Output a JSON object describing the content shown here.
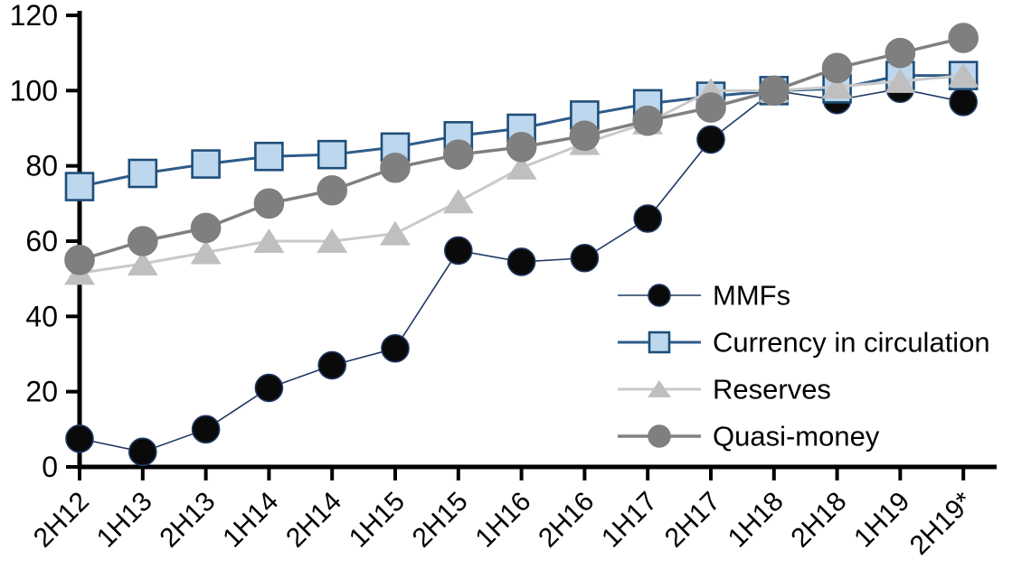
{
  "chart_data": {
    "type": "line",
    "title": "",
    "categories": [
      "2H12",
      "1H13",
      "2H13",
      "1H14",
      "2H14",
      "1H15",
      "2H15",
      "1H16",
      "2H16",
      "1H17",
      "2H17",
      "1H18",
      "2H18",
      "1H19",
      "2H19*"
    ],
    "series": [
      {
        "name": "MMFs",
        "marker": "circle",
        "marker_fill": "#0a0a0a",
        "marker_stroke": "#1f3864",
        "line_color": "#1f3864",
        "line_width": 1.6,
        "marker_size": 15,
        "values": [
          7.5,
          4,
          10,
          21,
          27,
          31.5,
          57.5,
          54.5,
          55.5,
          66,
          87,
          100,
          97.5,
          100.5,
          97
        ]
      },
      {
        "name": "Currency in circulation",
        "marker": "square",
        "marker_fill": "#bdd7ee",
        "marker_stroke": "#1f4e79",
        "line_color": "#2e5c8a",
        "line_width": 3,
        "marker_size": 15,
        "values": [
          74.5,
          78,
          80.5,
          82.5,
          83,
          85,
          88,
          90,
          93.5,
          96.5,
          98.5,
          100,
          100.5,
          104,
          104
        ]
      },
      {
        "name": "Reserves",
        "marker": "triangle",
        "marker_fill": "#bfbfbf",
        "marker_stroke": "#bfbfbf",
        "line_color": "#c9c9c9",
        "line_width": 3,
        "marker_size": 16,
        "values": [
          51.5,
          54,
          57,
          60,
          60,
          62,
          70.5,
          79.5,
          86,
          91.5,
          100,
          100,
          101,
          102.5,
          104
        ]
      },
      {
        "name": "Quasi-money",
        "marker": "circle",
        "marker_fill": "#7f7f7f",
        "marker_stroke": "#7f7f7f",
        "line_color": "#808080",
        "line_width": 3.5,
        "marker_size": 16,
        "values": [
          55,
          60,
          63.5,
          70,
          73.5,
          79.5,
          83,
          85,
          88,
          92,
          95.5,
          100,
          106,
          110,
          114
        ]
      }
    ],
    "xlabel": "",
    "ylabel": "",
    "ylim": [
      0,
      120
    ],
    "yticks": [
      0,
      20,
      40,
      60,
      80,
      100,
      120
    ],
    "grid": false,
    "legend_position": "inside-right",
    "axis_color": "#000000",
    "background_color": "#ffffff"
  }
}
